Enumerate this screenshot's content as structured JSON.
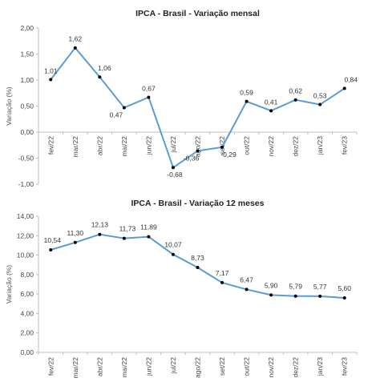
{
  "chart_data": [
    {
      "type": "line",
      "title": "IPCA - Brasil - Variação mensal",
      "xlabel": "",
      "ylabel": "Variação (%)",
      "categories": [
        "fev/22",
        "mar/22",
        "abr/22",
        "mai/22",
        "jun/22",
        "jul/22",
        "ago/22",
        "set/22",
        "out/22",
        "nov/22",
        "dez/22",
        "jan/23",
        "fev/23"
      ],
      "values": [
        1.01,
        1.62,
        1.06,
        0.47,
        0.67,
        -0.68,
        -0.36,
        -0.29,
        0.59,
        0.41,
        0.62,
        0.53,
        0.84
      ],
      "value_labels": [
        "1,01",
        "1,62",
        "1,06",
        "0,47",
        "0,67",
        "-0,68",
        "-0,36",
        "-0,29",
        "0,59",
        "0,41",
        "0,62",
        "0,53",
        "0,84"
      ],
      "ylim": [
        -1.0,
        2.0
      ],
      "yticks": [
        -1.0,
        -0.5,
        0.0,
        0.5,
        1.0,
        1.5,
        2.0
      ],
      "ytick_labels": [
        "-1,00",
        "-0,50",
        "0,00",
        "0,50",
        "1,00",
        "1,50",
        "2,00"
      ],
      "line_color": "#5b9bd5",
      "marker_color": "#000000",
      "grid": false,
      "legend": "none"
    },
    {
      "type": "line",
      "title": "IPCA - Brasil - Variação 12 meses",
      "xlabel": "",
      "ylabel": "Variação (%)",
      "categories": [
        "fev/22",
        "mar/22",
        "abr/22",
        "mai/22",
        "jun/22",
        "jul/22",
        "ago/22",
        "set/22",
        "out/22",
        "nov/22",
        "dez/22",
        "jan/23",
        "fev/23"
      ],
      "values": [
        10.54,
        11.3,
        12.13,
        11.73,
        11.89,
        10.07,
        8.73,
        7.17,
        6.47,
        5.9,
        5.79,
        5.77,
        5.6
      ],
      "value_labels": [
        "10,54",
        "11,30",
        "12,13",
        "11,73",
        "11,89",
        "10,07",
        "8,73",
        "7,17",
        "6,47",
        "5,90",
        "5,79",
        "5,77",
        "5,60"
      ],
      "ylim": [
        0,
        14
      ],
      "yticks": [
        0,
        2,
        4,
        6,
        8,
        10,
        12,
        14
      ],
      "ytick_labels": [
        "0,00",
        "2,00",
        "4,00",
        "6,00",
        "8,00",
        "10,00",
        "12,00",
        "14,00"
      ],
      "line_color": "#5b9bd5",
      "marker_color": "#000000",
      "grid": false,
      "legend": "none"
    }
  ]
}
